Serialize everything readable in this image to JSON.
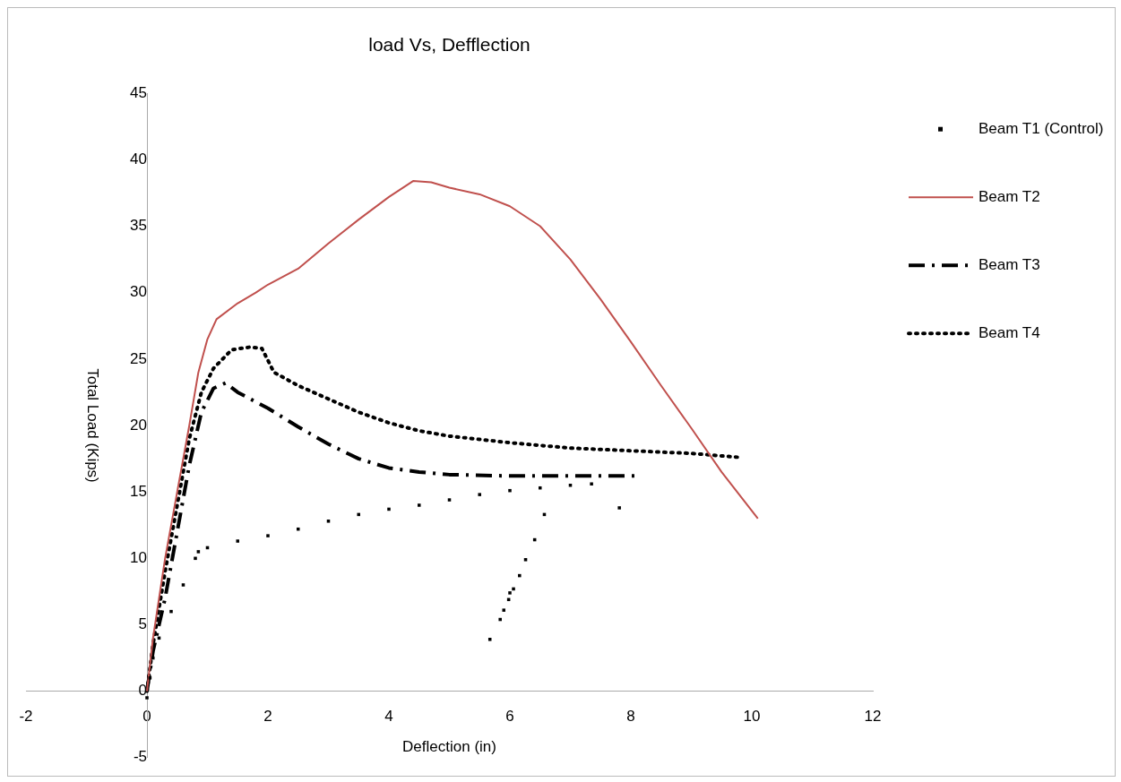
{
  "chart_data": {
    "type": "line",
    "title": "load Vs, Defflection",
    "xlabel": "Deflection (in)",
    "ylabel": "Total Load (Kips)",
    "xlim": [
      -2,
      12
    ],
    "xticks": [
      -2,
      0,
      2,
      4,
      6,
      8,
      10,
      12
    ],
    "ylim": [
      -5,
      45
    ],
    "yticks": [
      -5,
      0,
      5,
      10,
      15,
      20,
      25,
      30,
      35,
      40,
      45
    ],
    "grid": false,
    "legend": "right",
    "series": [
      {
        "name": "Beam T1 (Control)",
        "type": "scatter",
        "marker": "square",
        "color": "#000000",
        "x": [
          0,
          0.05,
          0.1,
          0.2,
          0.4,
          0.6,
          0.8,
          0.85,
          1,
          1.5,
          2,
          2.5,
          3,
          3.5,
          4,
          4.5,
          5,
          5.5,
          6,
          6.5,
          7,
          7.35,
          7.81,
          6.57,
          6.41,
          6.26,
          6.16,
          6.06,
          6,
          5.98,
          5.9,
          5.84,
          5.67
        ],
        "values": [
          -0.5,
          1,
          2.5,
          4,
          6,
          8,
          10,
          10.5,
          10.8,
          11.3,
          11.7,
          12.2,
          12.8,
          13.3,
          13.7,
          14,
          14.4,
          14.8,
          15.1,
          15.3,
          15.5,
          15.6,
          13.8,
          13.3,
          11.4,
          9.9,
          8.7,
          7.7,
          7.4,
          6.9,
          6.1,
          5.4,
          3.9
        ]
      },
      {
        "name": "Beam T2",
        "marker": "none",
        "line_style": "solid",
        "color": "#c0504d",
        "x": [
          0,
          0.1,
          0.3,
          0.5,
          0.7,
          0.85,
          1,
          1.15,
          1.5,
          1.8,
          2,
          2.5,
          3,
          3.5,
          4,
          4.4,
          4.7,
          5,
          5.5,
          6,
          6.5,
          7,
          7.5,
          8,
          8.5,
          9,
          9.5,
          10.1
        ],
        "values": [
          0,
          4,
          10,
          15,
          20,
          24,
          26.5,
          28,
          29.2,
          30,
          30.6,
          31.8,
          33.7,
          35.5,
          37.2,
          38.4,
          38.3,
          37.9,
          37.4,
          36.5,
          35,
          32.5,
          29.5,
          26.3,
          23,
          19.8,
          16.5,
          13
        ]
      },
      {
        "name": "Beam T3",
        "marker": "none",
        "line_style": "dashdot",
        "color": "#000000",
        "x": [
          0,
          0.1,
          0.3,
          0.5,
          0.7,
          0.9,
          1.1,
          1.3,
          1.5,
          2,
          2.5,
          3,
          3.5,
          4,
          4.5,
          5,
          6,
          7,
          8.1
        ],
        "values": [
          0,
          3,
          7,
          12,
          17,
          21,
          22.8,
          23.2,
          22.5,
          21.3,
          19.9,
          18.6,
          17.5,
          16.8,
          16.5,
          16.3,
          16.2,
          16.2,
          16.2
        ]
      },
      {
        "name": "Beam T4",
        "marker": "none",
        "line_style": "dotted",
        "color": "#000000",
        "x": [
          0,
          0.1,
          0.3,
          0.5,
          0.7,
          0.9,
          1.1,
          1.4,
          1.7,
          1.9,
          2.1,
          2.5,
          3,
          3.5,
          4,
          4.5,
          5,
          6,
          7,
          8,
          9,
          9.8
        ],
        "values": [
          0,
          3.5,
          9,
          14,
          19,
          22.5,
          24.3,
          25.7,
          25.9,
          25.8,
          24,
          23,
          22,
          21,
          20.2,
          19.6,
          19.2,
          18.7,
          18.3,
          18.1,
          17.9,
          17.6
        ]
      }
    ]
  }
}
